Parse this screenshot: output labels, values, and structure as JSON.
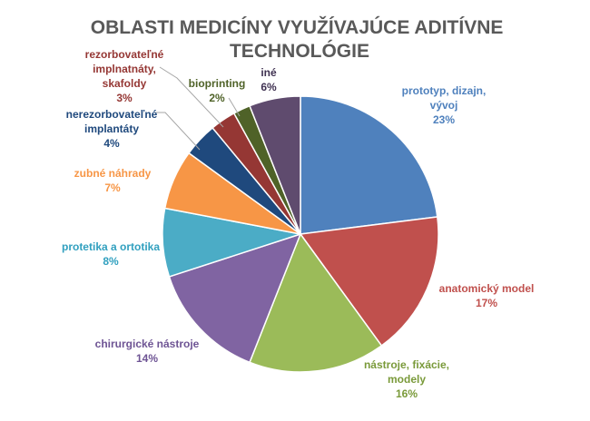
{
  "chart_data": {
    "type": "pie",
    "title": "OBLASTI MEDICÍNY VYUŽÍVAJÚCE ADITÍVNE TECHNOLÓGIE",
    "title_lines": [
      "OBLASTI MEDICÍNY VYUŽÍVAJÚCE ADITÍVNE",
      "TECHNOLÓGIE"
    ],
    "slices": [
      {
        "label_lines": [
          "prototyp, dizajn,",
          "vývoj"
        ],
        "value": 23,
        "value_label": "23%",
        "color": "#4f81bd",
        "label_color": "#4f81bd"
      },
      {
        "label_lines": [
          "anatomický model"
        ],
        "value": 17,
        "value_label": "17%",
        "color": "#c0504d",
        "label_color": "#c0504d"
      },
      {
        "label_lines": [
          "nástroje, fixácie,",
          "modely"
        ],
        "value": 16,
        "value_label": "16%",
        "color": "#9bbb59",
        "label_color": "#7a9a3a"
      },
      {
        "label_lines": [
          "chirurgické nástroje"
        ],
        "value": 14,
        "value_label": "14%",
        "color": "#8064a2",
        "label_color": "#6e5494"
      },
      {
        "label_lines": [
          "protetika a ortotika"
        ],
        "value": 8,
        "value_label": "8%",
        "color": "#4bacc6",
        "label_color": "#31a0bf"
      },
      {
        "label_lines": [
          "zubné náhrady"
        ],
        "value": 7,
        "value_label": "7%",
        "color": "#f79646",
        "label_color": "#f79646"
      },
      {
        "label_lines": [
          "nerezorbovateľné",
          "implantáty"
        ],
        "value": 4,
        "value_label": "4%",
        "color": "#1f497d",
        "label_color": "#1f497d"
      },
      {
        "label_lines": [
          "rezorbovateľné",
          "implnatnáty,",
          "skafoldy"
        ],
        "value": 3,
        "value_label": "3%",
        "color": "#953734",
        "label_color": "#953734"
      },
      {
        "label_lines": [
          "bioprinting"
        ],
        "value": 2,
        "value_label": "2%",
        "color": "#4f6228",
        "label_color": "#4f6228"
      },
      {
        "label_lines": [
          "iné"
        ],
        "value": 6,
        "value_label": "6%",
        "color": "#5f4b6e",
        "label_color": "#3f3151"
      }
    ],
    "start_angle": "top",
    "direction": "clockwise",
    "legend": "none"
  }
}
